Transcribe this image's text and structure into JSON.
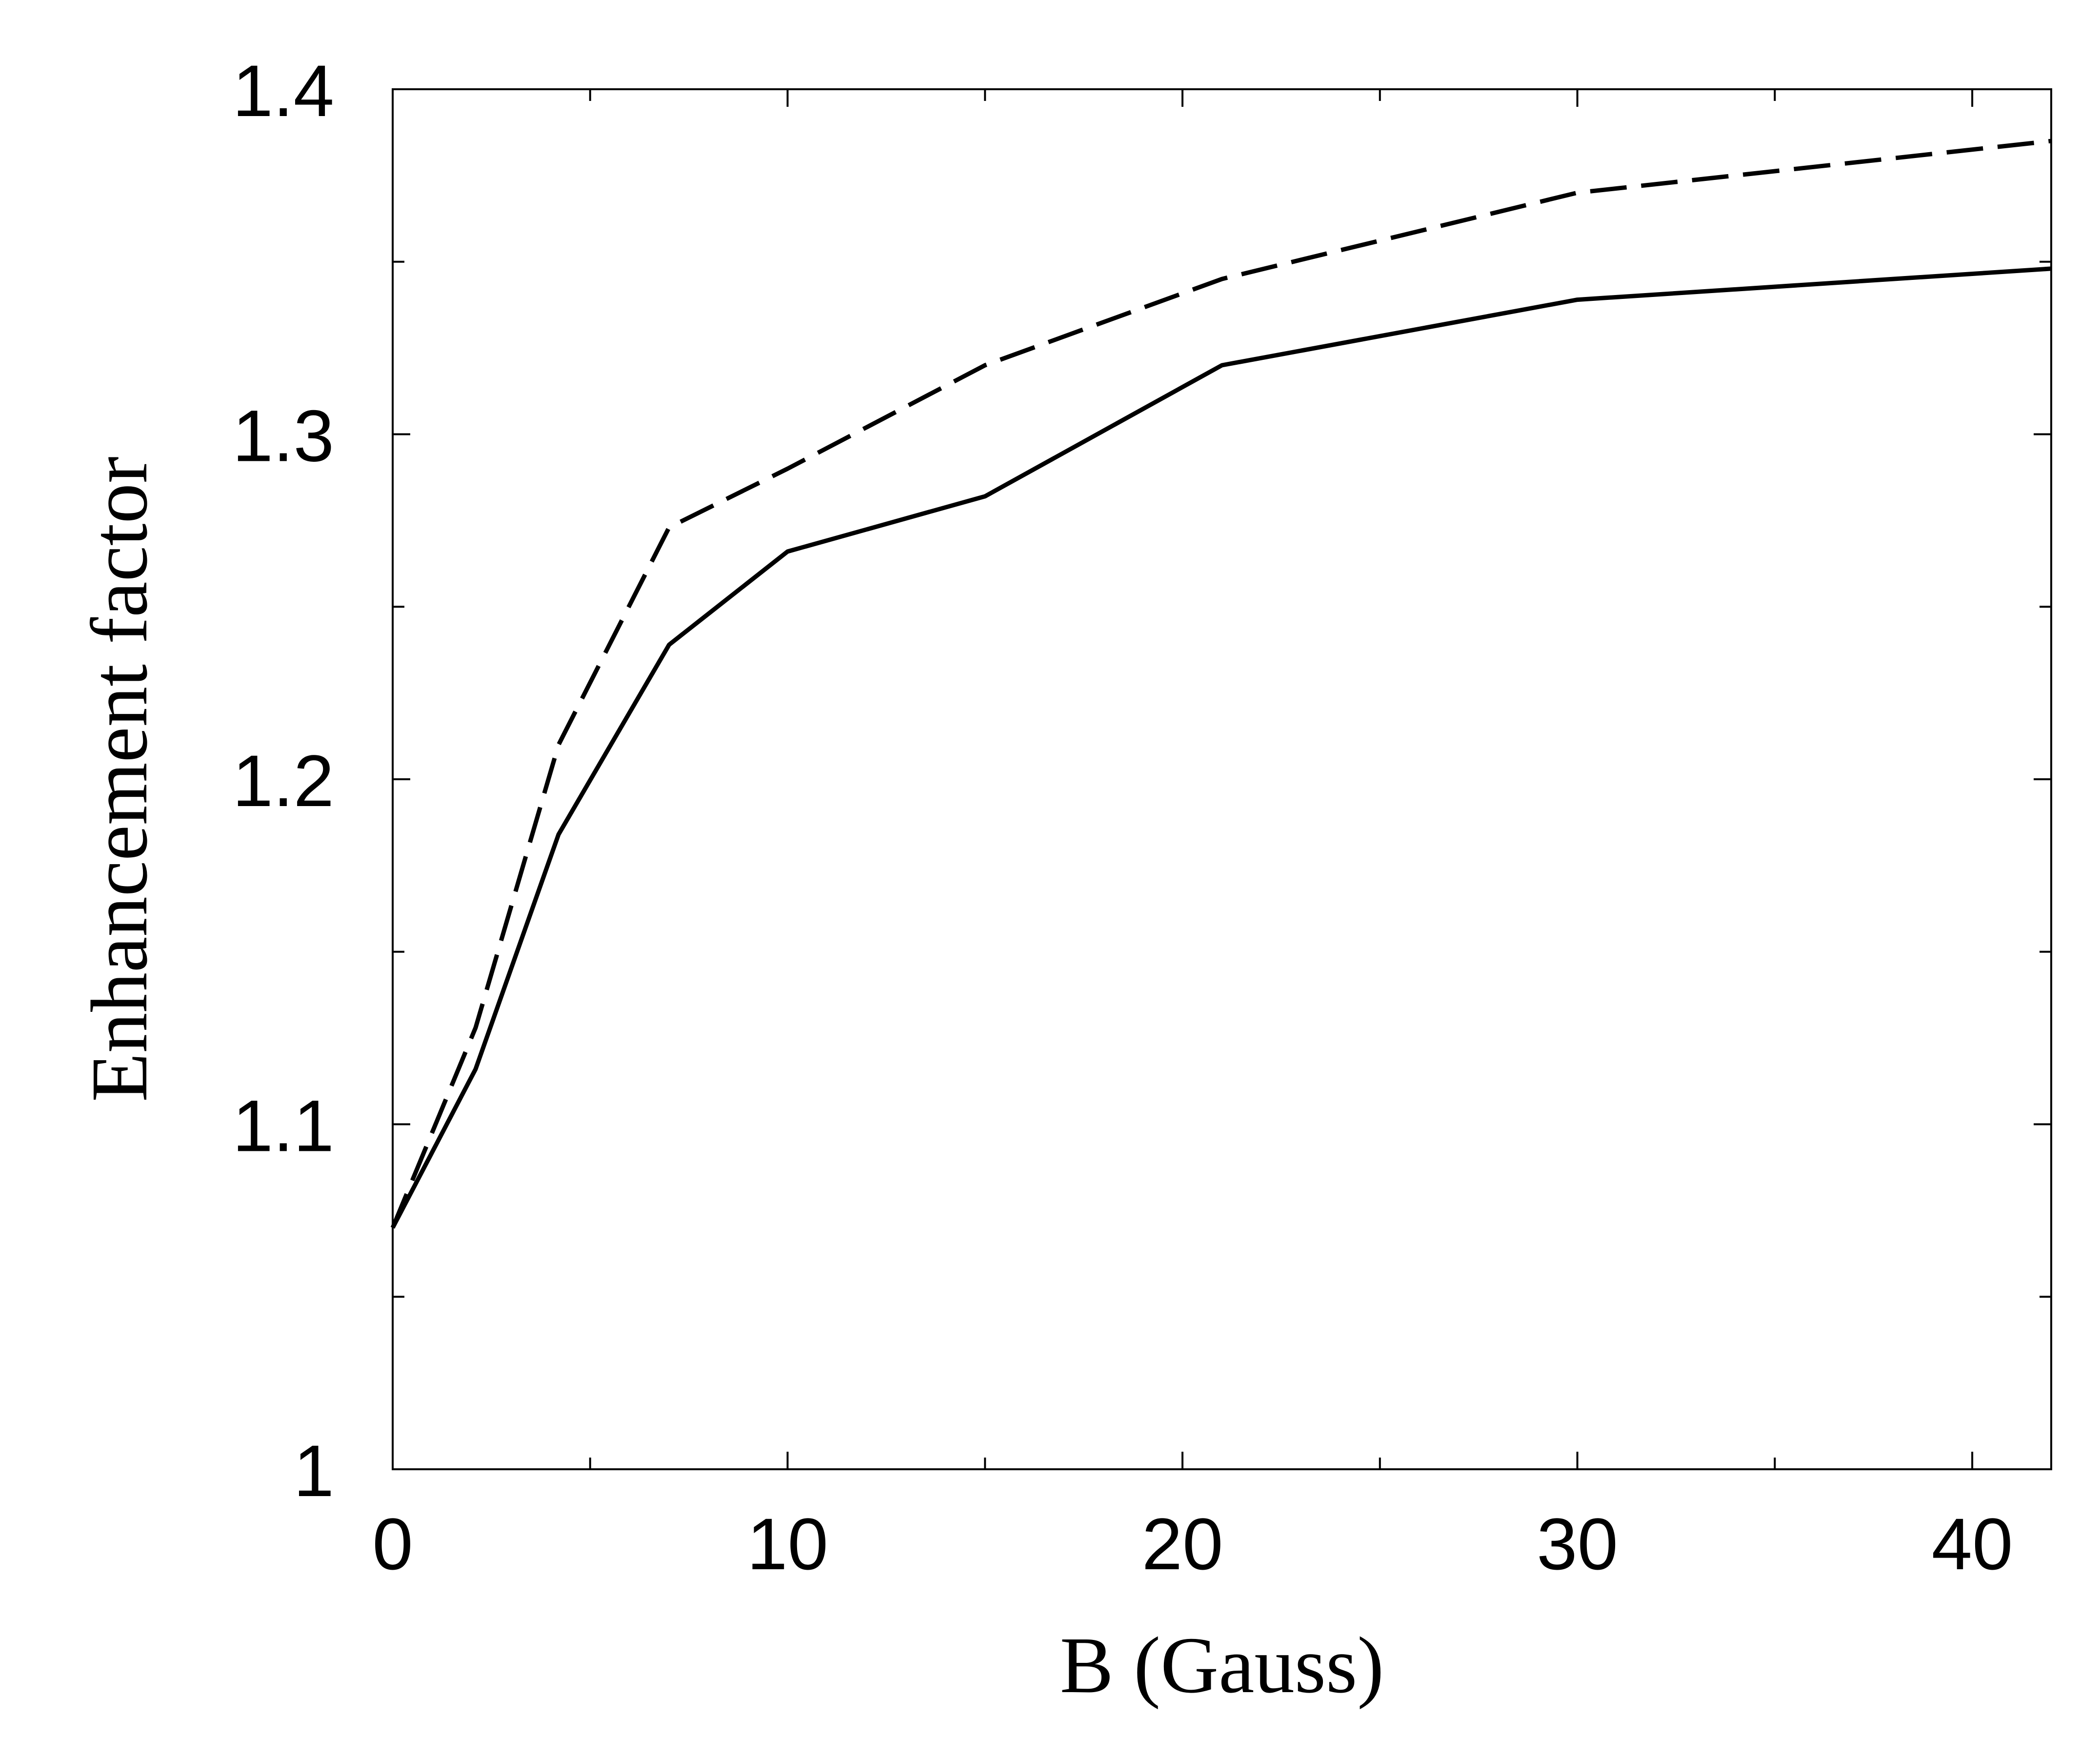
{
  "chart_data": {
    "type": "line",
    "title": "",
    "xlabel": "B (Gauss)",
    "ylabel": "Enhancement factor",
    "xlim": [
      0,
      42
    ],
    "ylim": [
      1.0,
      1.4
    ],
    "x_ticks_major": [
      0,
      10,
      20,
      30,
      40
    ],
    "x_tick_labels": [
      "0",
      "10",
      "20",
      "30",
      "40"
    ],
    "x_ticks_minor": [
      5,
      15,
      25,
      35
    ],
    "y_ticks_major": [
      1.0,
      1.1,
      1.2,
      1.3,
      1.4
    ],
    "y_tick_labels": [
      "1",
      "1.1",
      "1.2",
      "1.3",
      "1.4"
    ],
    "y_ticks_minor": [
      1.05,
      1.15,
      1.25,
      1.35
    ],
    "grid": false,
    "legend": "none",
    "series": [
      {
        "style": "solid",
        "color": "#000000",
        "x": [
          0,
          2.1,
          4.2,
          7,
          10,
          15,
          21,
          30,
          42
        ],
        "y": [
          1.07,
          1.116,
          1.184,
          1.239,
          1.266,
          1.282,
          1.32,
          1.339,
          1.348
        ]
      },
      {
        "style": "dashed",
        "color": "#000000",
        "x": [
          0,
          2.1,
          4.2,
          7,
          10,
          15,
          21,
          30,
          42
        ],
        "y": [
          1.07,
          1.128,
          1.21,
          1.273,
          1.29,
          1.32,
          1.345,
          1.37,
          1.385
        ]
      }
    ]
  }
}
